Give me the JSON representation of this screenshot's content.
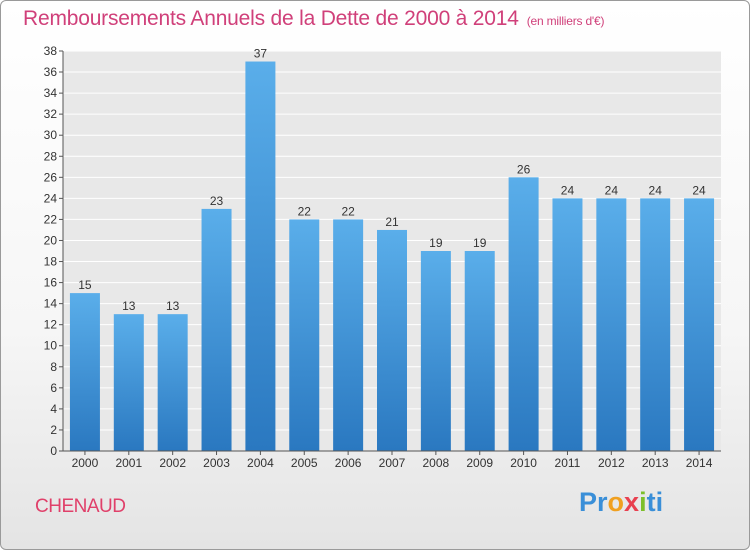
{
  "header": {
    "title": "Remboursements Annuels de la Dette de 2000 à 2014",
    "unit": "(en milliers d'€)"
  },
  "footer": {
    "commune": "CHENAUD",
    "logo": {
      "text": "Proxiti",
      "parts": [
        {
          "text": "Pr",
          "color": "#3a8fd8"
        },
        {
          "text": "o",
          "color": "#f0a020"
        },
        {
          "text": "x",
          "color": "#e8404f"
        },
        {
          "text": "i",
          "color": "#7cbf2a"
        },
        {
          "text": "ti",
          "color": "#3a8fd8"
        }
      ]
    }
  },
  "chart_data": {
    "type": "bar",
    "title": "Remboursements Annuels de la Dette de 2000 à 2014",
    "subtitle": "(en milliers d'€)",
    "categories": [
      "2000",
      "2001",
      "2002",
      "2003",
      "2004",
      "2005",
      "2006",
      "2007",
      "2008",
      "2009",
      "2010",
      "2011",
      "2012",
      "2013",
      "2014"
    ],
    "values": [
      15,
      13,
      13,
      23,
      37,
      22,
      22,
      21,
      19,
      19,
      26,
      24,
      24,
      24,
      24
    ],
    "xlabel": "",
    "ylabel": "",
    "ylim": [
      0,
      38
    ],
    "ytick_step": 2,
    "grid": true,
    "bar_color": "#3b8fd6",
    "data_labels": true
  }
}
